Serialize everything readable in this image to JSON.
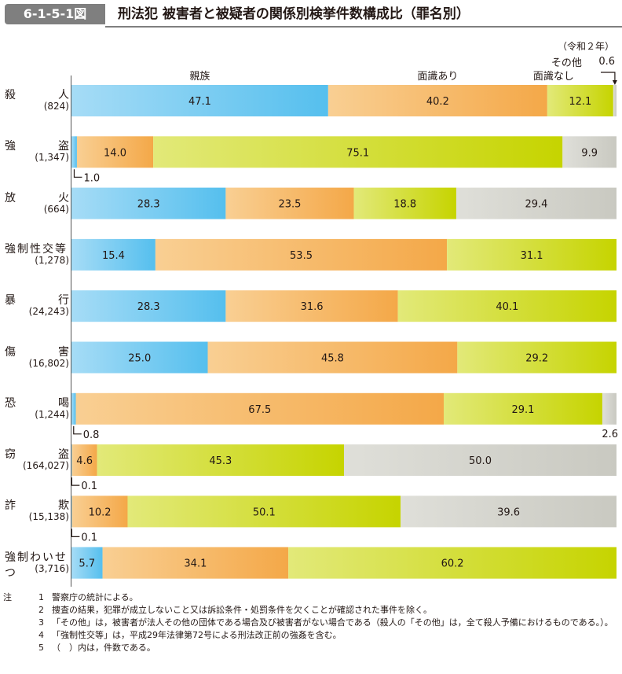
{
  "figure": {
    "number": "6-1-5-1図",
    "title": "刑法犯 被害者と被疑者の関係別検挙件数構成比（罪名別）",
    "year_note": "（令和２年）"
  },
  "chart_data": {
    "type": "bar",
    "orientation": "horizontal",
    "stacked": "percent",
    "series_colors": [
      "#55bfee",
      "#f4a848",
      "#c6d400",
      "#c9c9c1"
    ],
    "legend": [
      "親族",
      "面識あり",
      "面識なし",
      "その他"
    ],
    "categories": [
      {
        "name": "殺人",
        "name_display": [
          "殺",
          "人"
        ],
        "count": "(824)",
        "values": [
          47.1,
          40.2,
          12.1,
          0.6
        ],
        "labels": [
          "47.1",
          "40.2",
          "12.1",
          ""
        ],
        "callouts": [
          {
            "series": 3,
            "text": "0.6",
            "position": "top-right"
          }
        ]
      },
      {
        "name": "強盗",
        "name_display": [
          "強",
          "盗"
        ],
        "count": "(1,347)",
        "values": [
          1.0,
          14.0,
          75.1,
          9.9
        ],
        "labels": [
          "",
          "14.0",
          "75.1",
          "9.9"
        ],
        "callouts": [
          {
            "series": 0,
            "text": "1.0",
            "position": "below-left"
          }
        ]
      },
      {
        "name": "放火",
        "name_display": [
          "放",
          "火"
        ],
        "count": "(664)",
        "values": [
          28.3,
          23.5,
          18.8,
          29.4
        ],
        "labels": [
          "28.3",
          "23.5",
          "18.8",
          "29.4"
        ],
        "callouts": []
      },
      {
        "name": "強制性交等",
        "name_display": [
          "強制性交等"
        ],
        "count": "(1,278)",
        "values": [
          15.4,
          53.5,
          31.1,
          0
        ],
        "labels": [
          "15.4",
          "53.5",
          "31.1",
          ""
        ],
        "callouts": []
      },
      {
        "name": "暴行",
        "name_display": [
          "暴",
          "行"
        ],
        "count": "(24,243)",
        "values": [
          28.3,
          31.6,
          40.1,
          0
        ],
        "labels": [
          "28.3",
          "31.6",
          "40.1",
          ""
        ],
        "callouts": []
      },
      {
        "name": "傷害",
        "name_display": [
          "傷",
          "害"
        ],
        "count": "(16,802)",
        "values": [
          25.0,
          45.8,
          29.2,
          0
        ],
        "labels": [
          "25.0",
          "45.8",
          "29.2",
          ""
        ],
        "callouts": []
      },
      {
        "name": "恐喝",
        "name_display": [
          "恐",
          "喝"
        ],
        "count": "(1,244)",
        "values": [
          0.8,
          67.5,
          29.1,
          2.6
        ],
        "labels": [
          "",
          "67.5",
          "29.1",
          ""
        ],
        "callouts": [
          {
            "series": 0,
            "text": "0.8",
            "position": "below-left"
          },
          {
            "series": 3,
            "text": "2.6",
            "position": "below-right"
          }
        ]
      },
      {
        "name": "窃盗",
        "name_display": [
          "窃",
          "盗"
        ],
        "count": "(164,027)",
        "values": [
          0.1,
          4.6,
          45.3,
          50.0
        ],
        "labels": [
          "",
          "4.6",
          "45.3",
          "50.0"
        ],
        "callouts": [
          {
            "series": 0,
            "text": "0.1",
            "position": "below-left"
          }
        ]
      },
      {
        "name": "詐欺",
        "name_display": [
          "詐",
          "欺"
        ],
        "count": "(15,138)",
        "values": [
          0.1,
          10.2,
          50.1,
          39.6
        ],
        "labels": [
          "",
          "10.2",
          "50.1",
          "39.6"
        ],
        "callouts": [
          {
            "series": 0,
            "text": "0.1",
            "position": "below-left"
          }
        ]
      },
      {
        "name": "強制わいせつ",
        "name_display": [
          "強制わいせつ"
        ],
        "count": "(3,716)",
        "values": [
          5.7,
          34.1,
          60.2,
          0
        ],
        "labels": [
          "5.7",
          "34.1",
          "60.2",
          ""
        ],
        "callouts": []
      }
    ]
  },
  "notes": [
    {
      "head": "注",
      "num": "1",
      "text": "警察庁の統計による。"
    },
    {
      "head": "",
      "num": "2",
      "text": "捜査の結果，犯罪が成立しないこと又は訴訟条件・処罰条件を欠くことが確認された事件を除く。"
    },
    {
      "head": "",
      "num": "3",
      "text": "「その他」は，被害者が法人その他の団体である場合及び被害者がない場合である（殺人の「その他」は，全て殺人予備におけるものである。）。"
    },
    {
      "head": "",
      "num": "4",
      "text": "「強制性交等」は，平成29年法律第72号による刑法改正前の強姦を含む。"
    },
    {
      "head": "",
      "num": "5",
      "text": "（　）内は，件数である。"
    }
  ]
}
